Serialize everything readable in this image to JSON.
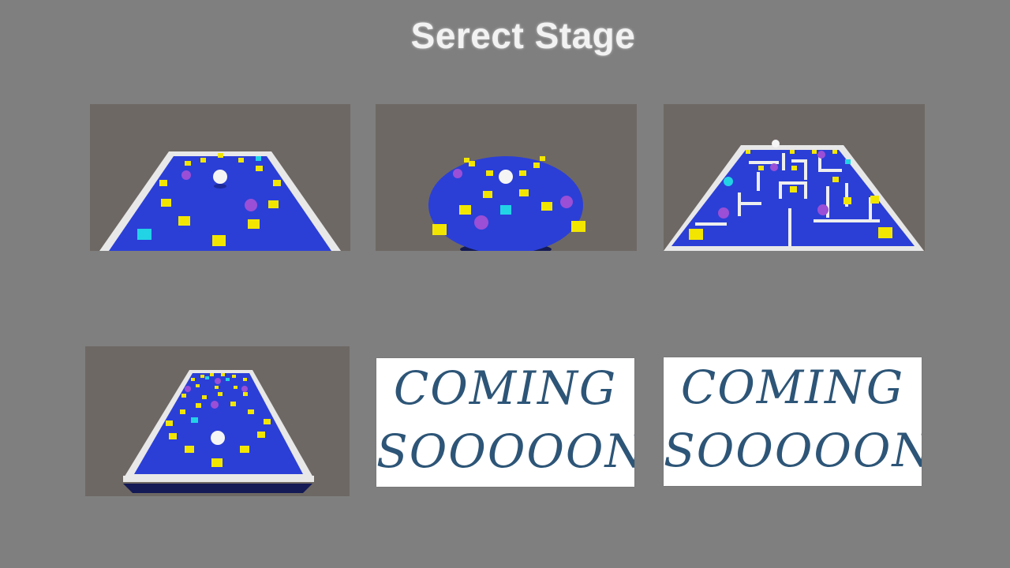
{
  "screen": {
    "title": "Serect Stage"
  },
  "stages": [
    {
      "id": 1,
      "kind": "square-arena",
      "status": "available"
    },
    {
      "id": 2,
      "kind": "round-arena",
      "status": "available"
    },
    {
      "id": 3,
      "kind": "maze-arena",
      "status": "available"
    },
    {
      "id": 4,
      "kind": "long-arena",
      "status": "available"
    },
    {
      "id": 5,
      "status": "locked",
      "label_line1": "COMING",
      "label_line2": "SOOOOON"
    },
    {
      "id": 6,
      "status": "locked",
      "label_line1": "COMING",
      "label_line2": "SOOOOON"
    }
  ],
  "colors": {
    "background": "#7f7f7f",
    "floor": "#2b3fd6",
    "wall": "#f2f2f2",
    "coin": "#f2e600",
    "gem": "#22d3e6",
    "spike": "#9a4fd6",
    "coming_text": "#2d5577"
  }
}
